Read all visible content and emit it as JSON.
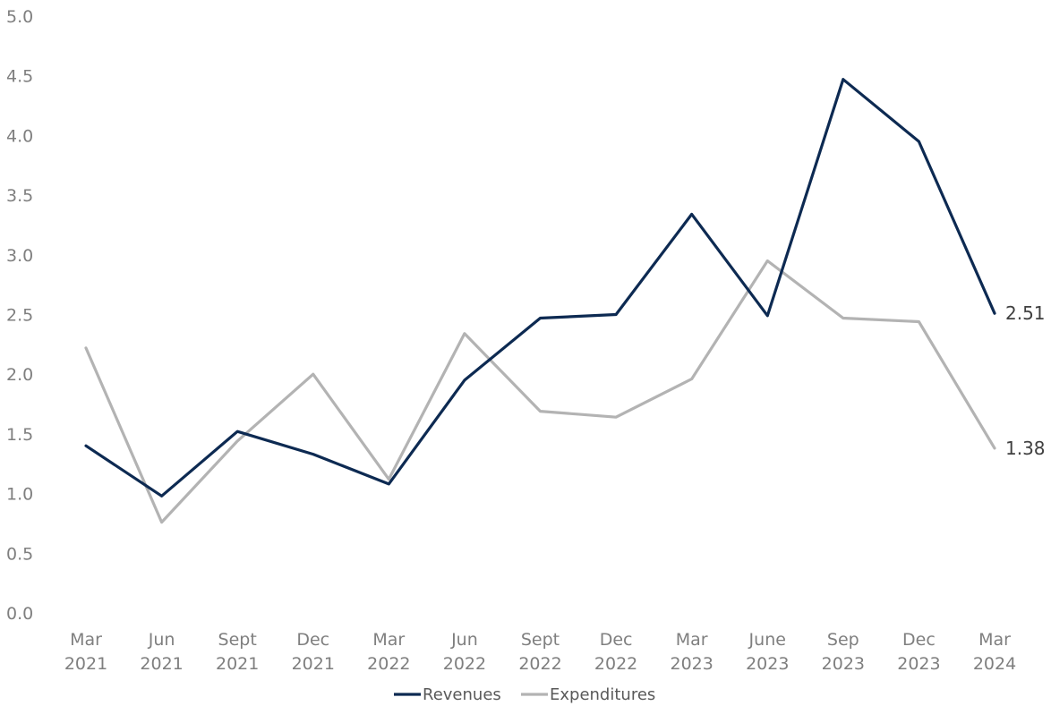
{
  "chart_data": {
    "type": "line",
    "x": [
      "Mar 2021",
      "Jun 2021",
      "Sept 2021",
      "Dec 2021",
      "Mar 2022",
      "Jun 2022",
      "Sept 2022",
      "Dec 2022",
      "Mar 2023",
      "June 2023",
      "Sep 2023",
      "Dec 2023",
      "Mar 2024"
    ],
    "x_tick_lines": [
      [
        "Mar",
        "2021"
      ],
      [
        "Jun",
        "2021"
      ],
      [
        "Sept",
        "2021"
      ],
      [
        "Dec",
        "2021"
      ],
      [
        "Mar",
        "2022"
      ],
      [
        "Jun",
        "2022"
      ],
      [
        "Sept",
        "2022"
      ],
      [
        "Dec",
        "2022"
      ],
      [
        "Mar",
        "2023"
      ],
      [
        "June",
        "2023"
      ],
      [
        "Sep",
        "2023"
      ],
      [
        "Dec",
        "2023"
      ],
      [
        "Mar",
        "2024"
      ]
    ],
    "series": [
      {
        "name": "Revenues",
        "color": "#0d2a52",
        "values": [
          1.4,
          0.98,
          1.52,
          1.33,
          1.08,
          1.95,
          2.47,
          2.5,
          3.34,
          2.49,
          4.47,
          3.95,
          2.51
        ],
        "end_label": "2.51"
      },
      {
        "name": "Expenditures",
        "color": "#b3b3b3",
        "values": [
          2.22,
          0.76,
          1.44,
          2.0,
          1.12,
          2.34,
          1.69,
          1.64,
          1.96,
          2.95,
          2.47,
          2.44,
          1.38
        ],
        "end_label": "1.38"
      }
    ],
    "y_ticks": [
      "0.0",
      "0.5",
      "1.0",
      "1.5",
      "2.0",
      "2.5",
      "3.0",
      "3.5",
      "4.0",
      "4.5",
      "5.0"
    ],
    "ylim": [
      0,
      5
    ],
    "grid": false,
    "legend_position": "bottom-center",
    "title": "",
    "xlabel": "",
    "ylabel": ""
  }
}
